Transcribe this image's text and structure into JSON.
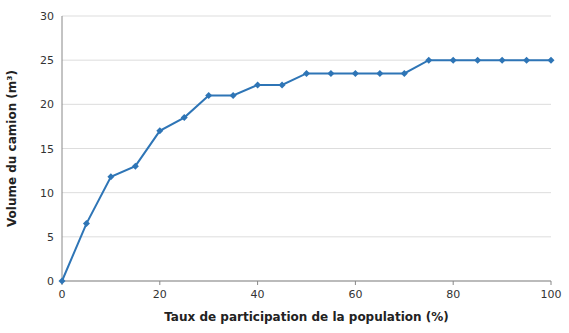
{
  "chart_data": {
    "type": "line",
    "x": [
      0,
      5,
      10,
      15,
      20,
      25,
      30,
      35,
      40,
      45,
      50,
      55,
      60,
      65,
      70,
      75,
      80,
      85,
      90,
      95,
      100
    ],
    "values": [
      0,
      6.5,
      11.8,
      13.0,
      17.0,
      18.5,
      21.0,
      21.0,
      22.2,
      22.2,
      23.5,
      23.5,
      23.5,
      23.5,
      23.5,
      25.0,
      25.0,
      25.0,
      25.0,
      25.0,
      25.0
    ],
    "color": "#2e75b6",
    "marker": "diamond",
    "xlabel": "Taux de participation de la population (%)",
    "ylabel": "Volume du camion (m³)",
    "xlim": [
      0,
      100
    ],
    "ylim": [
      0,
      30
    ],
    "xticks": [
      0,
      20,
      40,
      60,
      80,
      100
    ],
    "yticks": [
      0,
      5,
      10,
      15,
      20,
      25,
      30
    ],
    "grid": true
  }
}
